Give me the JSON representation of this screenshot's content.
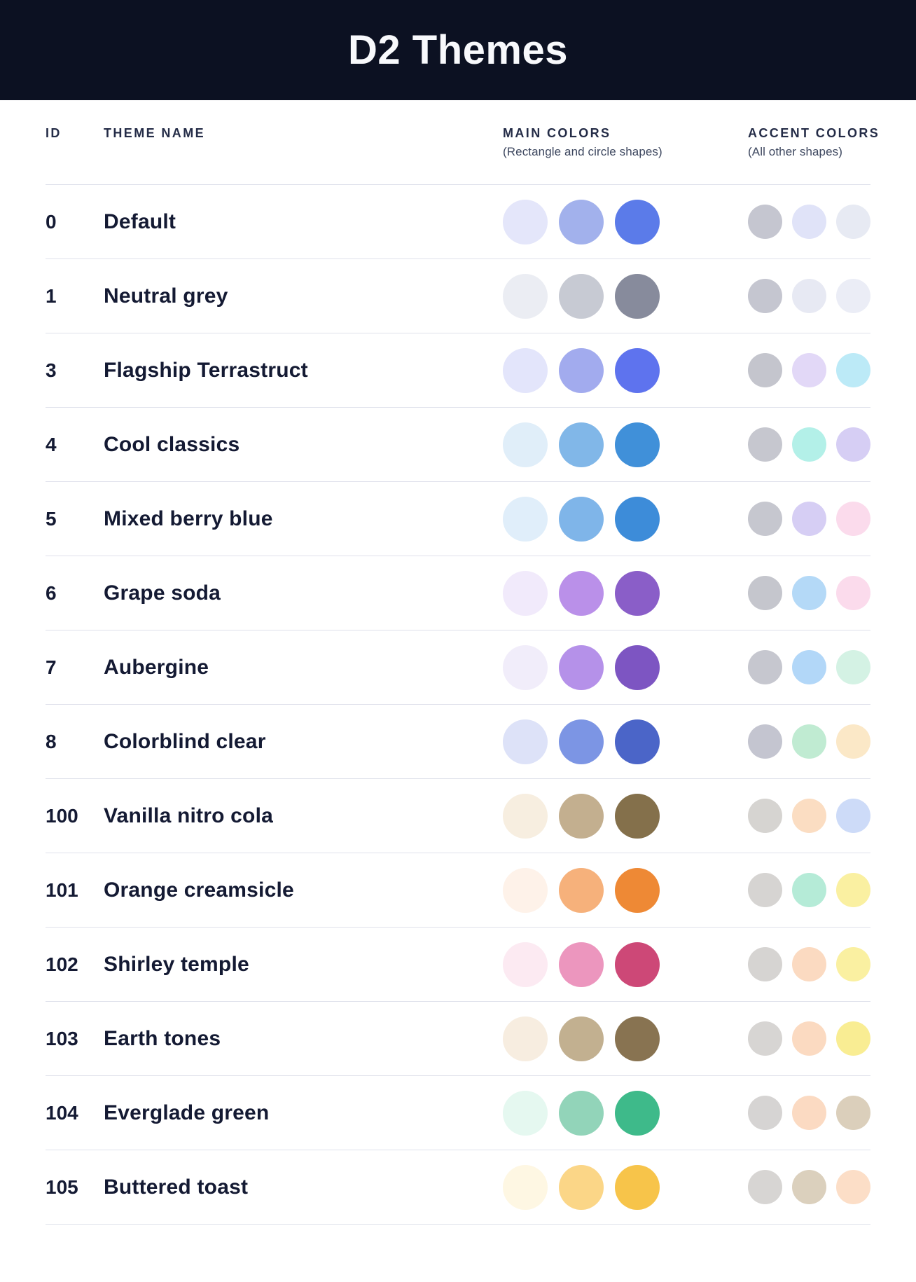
{
  "header": {
    "title": "D2 Themes"
  },
  "table": {
    "columns": {
      "id": "ID",
      "theme_name": "THEME NAME",
      "main_colors": "MAIN COLORS",
      "main_colors_note": "(Rectangle and circle shapes)",
      "accent_colors": "ACCENT COLORS",
      "accent_colors_note": "(All other shapes)"
    },
    "rows": [
      {
        "id": "0",
        "name": "Default",
        "main": [
          "#E4E6FA",
          "#A2B1EC",
          "#5B7BE9"
        ],
        "accent": [
          "#C5C6D0",
          "#E0E3F8",
          "#E7EAF3"
        ]
      },
      {
        "id": "1",
        "name": "Neutral grey",
        "main": [
          "#EBEDF3",
          "#C7CAD3",
          "#878B9C"
        ],
        "accent": [
          "#C5C6D0",
          "#E7E9F3",
          "#EBEDF6"
        ]
      },
      {
        "id": "3",
        "name": "Flagship Terrastruct",
        "main": [
          "#E3E5FB",
          "#A2ABEE",
          "#5E73EE"
        ],
        "accent": [
          "#C4C5CD",
          "#E2D8F7",
          "#BCEAF7"
        ]
      },
      {
        "id": "4",
        "name": "Cool classics",
        "main": [
          "#E0EEF9",
          "#81B7E8",
          "#4090D9"
        ],
        "accent": [
          "#C6C7CF",
          "#B3F0E8",
          "#D6CEF4"
        ]
      },
      {
        "id": "5",
        "name": "Mixed berry blue",
        "main": [
          "#E0EEFA",
          "#7FB5E9",
          "#3D8CD9"
        ],
        "accent": [
          "#C6C7CF",
          "#D6CEF4",
          "#FBDBEC"
        ]
      },
      {
        "id": "6",
        "name": "Grape soda",
        "main": [
          "#F1EAFB",
          "#BA90E9",
          "#8A5EC8"
        ],
        "accent": [
          "#C5C6CD",
          "#B4D9F7",
          "#FBDBEC"
        ]
      },
      {
        "id": "7",
        "name": "Aubergine",
        "main": [
          "#F1EDFA",
          "#B591E9",
          "#7D55C2"
        ],
        "accent": [
          "#C6C7CF",
          "#B2D7F8",
          "#D4F2E4"
        ]
      },
      {
        "id": "8",
        "name": "Colorblind clear",
        "main": [
          "#DDE2F8",
          "#7C95E4",
          "#4B65C8"
        ],
        "accent": [
          "#C4C5D0",
          "#C0EBD2",
          "#FBE8C7"
        ]
      },
      {
        "id": "100",
        "name": "Vanilla nitro cola",
        "main": [
          "#F7EEE0",
          "#C3AF8F",
          "#84704B"
        ],
        "accent": [
          "#D6D4D1",
          "#FBDDC2",
          "#CDDBF8"
        ]
      },
      {
        "id": "101",
        "name": "Orange creamsicle",
        "main": [
          "#FEF2E9",
          "#F6B17B",
          "#EE8935"
        ],
        "accent": [
          "#D6D4D2",
          "#B5EBD7",
          "#FAF0A1"
        ]
      },
      {
        "id": "102",
        "name": "Shirley temple",
        "main": [
          "#FCEAF2",
          "#EC96BE",
          "#CD4877"
        ],
        "accent": [
          "#D6D4D2",
          "#FBDAC1",
          "#FAF0A1"
        ]
      },
      {
        "id": "103",
        "name": "Earth tones",
        "main": [
          "#F7EDE0",
          "#C2B090",
          "#887351"
        ],
        "accent": [
          "#D7D5D3",
          "#FBDAC1",
          "#F9ED93"
        ]
      },
      {
        "id": "104",
        "name": "Everglade green",
        "main": [
          "#E5F8F0",
          "#92D4B9",
          "#3EBA8A"
        ],
        "accent": [
          "#D6D4D3",
          "#FBDAC2",
          "#DBCFBB"
        ]
      },
      {
        "id": "105",
        "name": "Buttered toast",
        "main": [
          "#FEF7E3",
          "#FBD687",
          "#F7C44A"
        ],
        "accent": [
          "#D7D5D3",
          "#DBD0BD",
          "#FCDEC7"
        ]
      }
    ]
  },
  "colors": {
    "header_bg": "#0C1122",
    "header_text": "#F8F9FC",
    "row_text": "#141A33",
    "column_header_text": "#242C47",
    "divider": "#DFE1EB"
  }
}
